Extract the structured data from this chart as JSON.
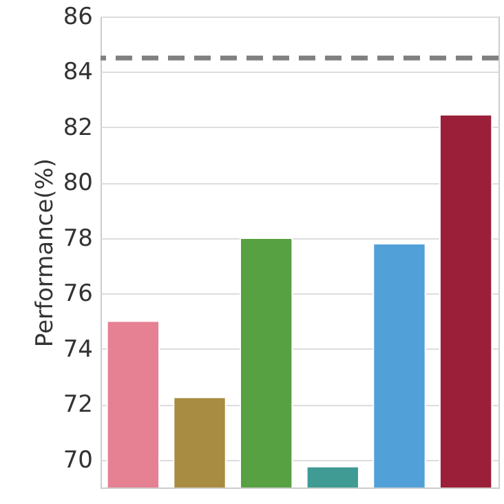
{
  "chart_data": {
    "type": "bar",
    "ylabel": "Performance(%)",
    "categories": [
      null,
      null,
      null,
      null,
      null,
      null
    ],
    "values": [
      75.0,
      72.25,
      78.0,
      69.75,
      77.8,
      82.45
    ],
    "colors": [
      "#e68093",
      "#a88c42",
      "#58a142",
      "#3f9b94",
      "#52a0d8",
      "#9b1f38"
    ],
    "ylim": [
      69,
      86
    ],
    "yticks": [
      70,
      72,
      74,
      76,
      78,
      80,
      82,
      84,
      86
    ],
    "grid": "y",
    "tick_labels": "y",
    "ref_lines": [
      {
        "axis": "y",
        "value": 84.5,
        "color": "#808080",
        "line_style": "dashed"
      }
    ]
  }
}
